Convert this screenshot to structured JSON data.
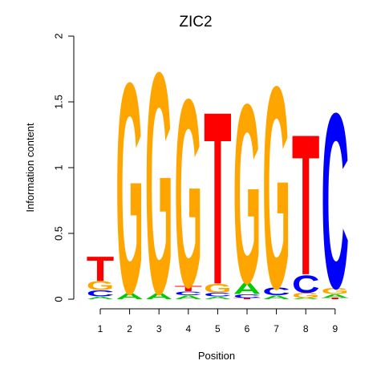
{
  "chart_data": {
    "type": "sequence-logo",
    "title": "ZIC2",
    "xlabel": "Position",
    "ylabel": "Information content",
    "ylim": [
      0,
      2
    ],
    "yticks": [
      "0",
      "0.5",
      "1",
      "1.5",
      "2"
    ],
    "xticks": [
      "1",
      "2",
      "3",
      "4",
      "5",
      "6",
      "7",
      "8",
      "9"
    ],
    "colors": {
      "A": "#00cc00",
      "C": "#0000ff",
      "G": "#ffa500",
      "T": "#ff0000"
    },
    "positions": [
      {
        "position": "1",
        "stack": [
          {
            "base": "A",
            "height": 0.02
          },
          {
            "base": "C",
            "height": 0.05
          },
          {
            "base": "G",
            "height": 0.07
          },
          {
            "base": "T",
            "height": 0.19
          }
        ]
      },
      {
        "position": "2",
        "stack": [
          {
            "base": "A",
            "height": 0.05
          },
          {
            "base": "G",
            "height": 1.65
          }
        ]
      },
      {
        "position": "3",
        "stack": [
          {
            "base": "A",
            "height": 0.05
          },
          {
            "base": "G",
            "height": 1.73
          }
        ]
      },
      {
        "position": "4",
        "stack": [
          {
            "base": "A",
            "height": 0.03
          },
          {
            "base": "C",
            "height": 0.03
          },
          {
            "base": "T",
            "height": 0.04
          },
          {
            "base": "G",
            "height": 1.47
          }
        ]
      },
      {
        "position": "5",
        "stack": [
          {
            "base": "A",
            "height": 0.02
          },
          {
            "base": "C",
            "height": 0.03
          },
          {
            "base": "G",
            "height": 0.07
          },
          {
            "base": "T",
            "height": 1.35
          }
        ]
      },
      {
        "position": "6",
        "stack": [
          {
            "base": "T",
            "height": 0.01
          },
          {
            "base": "C",
            "height": 0.03
          },
          {
            "base": "A",
            "height": 0.09
          },
          {
            "base": "G",
            "height": 1.4
          }
        ]
      },
      {
        "position": "7",
        "stack": [
          {
            "base": "A",
            "height": 0.03
          },
          {
            "base": "C",
            "height": 0.06
          },
          {
            "base": "G",
            "height": 1.58
          }
        ]
      },
      {
        "position": "8",
        "stack": [
          {
            "base": "A",
            "height": 0.01
          },
          {
            "base": "G",
            "height": 0.04
          },
          {
            "base": "C",
            "height": 0.14
          },
          {
            "base": "T",
            "height": 1.1
          }
        ]
      },
      {
        "position": "9",
        "stack": [
          {
            "base": "T",
            "height": 0.01
          },
          {
            "base": "A",
            "height": 0.03
          },
          {
            "base": "G",
            "height": 0.05
          },
          {
            "base": "C",
            "height": 1.37
          }
        ]
      }
    ]
  }
}
